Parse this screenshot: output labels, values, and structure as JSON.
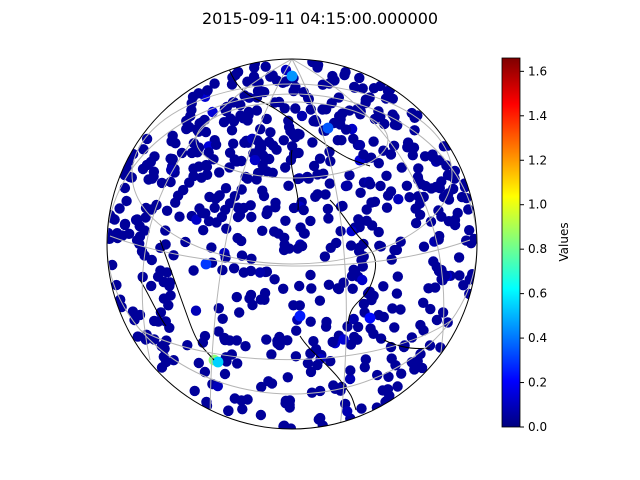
{
  "figure": {
    "title": "2015-09-11 04:15:00.000000"
  },
  "colorbar": {
    "label": "Values",
    "ticks": [
      "0.0",
      "0.2",
      "0.4",
      "0.6",
      "0.8",
      "1.0",
      "1.2",
      "1.4",
      "1.6"
    ],
    "min": 0.0,
    "max": 1.66,
    "colormap": "jet",
    "colormap_stops": [
      "#00007f",
      "#0000ff",
      "#007fff",
      "#00ffff",
      "#7fff7f",
      "#ffff00",
      "#ff7f00",
      "#ff0000",
      "#7f0000"
    ]
  },
  "map": {
    "projection": "orthographic",
    "gridlines": true,
    "coastlines": true,
    "marker_color_default": "#00009a",
    "highlight_points": [
      {
        "value": 0.85
      },
      {
        "value": 0.55
      },
      {
        "value": 0.45
      },
      {
        "value": 0.35
      },
      {
        "value": 0.3
      },
      {
        "value": 0.25
      },
      {
        "value": 0.22
      }
    ]
  }
}
